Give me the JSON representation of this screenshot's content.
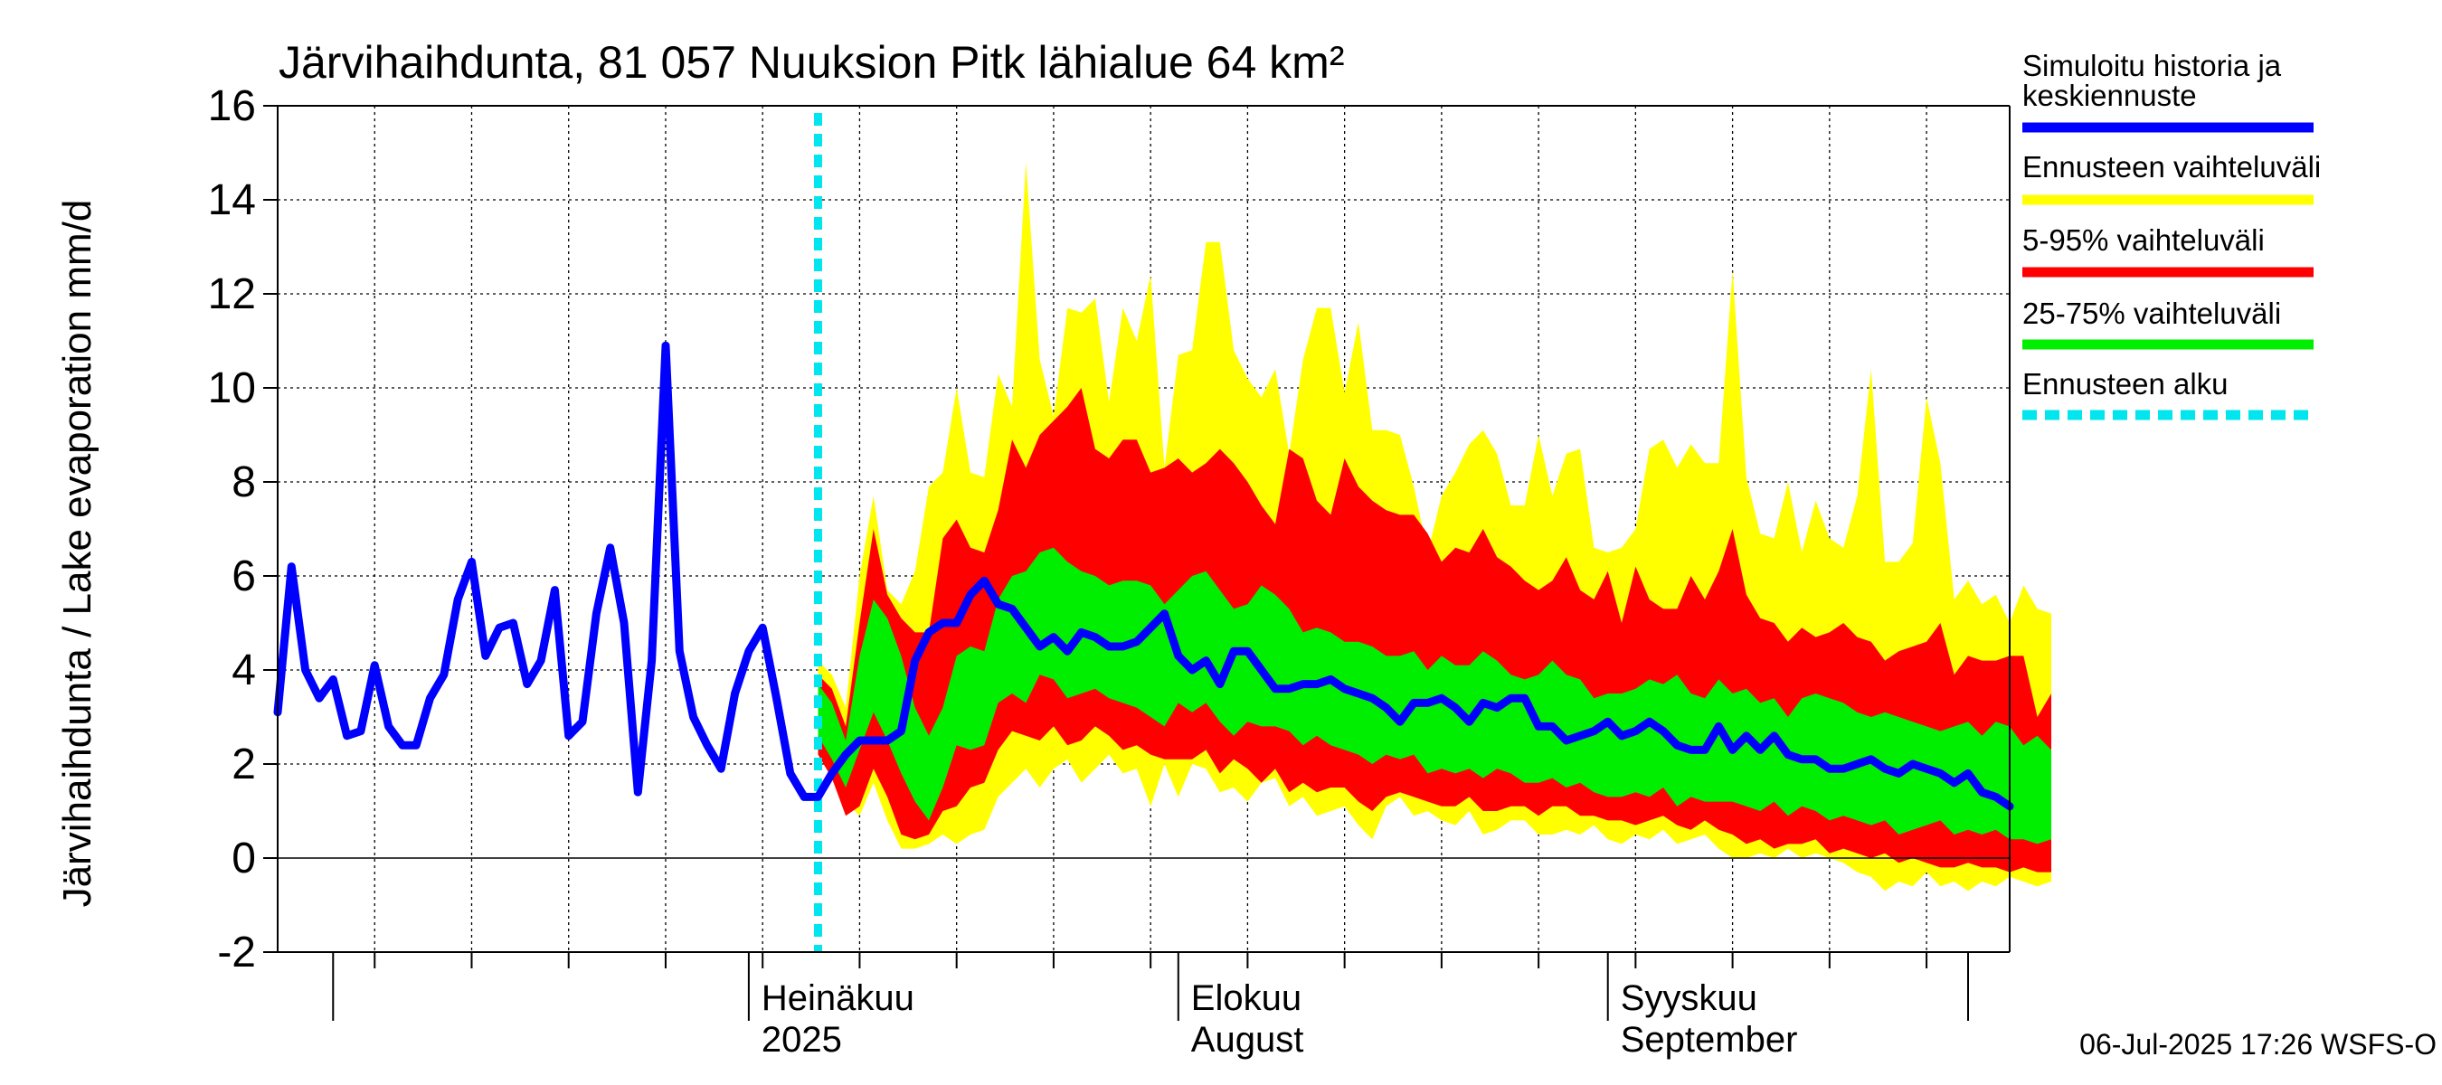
{
  "chart_data": {
    "type": "area",
    "title": "Järvihaihdunta, 81 057 Nuuksion Pitk lähialue 64 km²",
    "ylabel": "Järvihaihdunta / Lake evaporation   mm/d",
    "xlabel": "",
    "ylim": [
      -2,
      16
    ],
    "yticks": [
      -2,
      0,
      2,
      4,
      6,
      8,
      10,
      12,
      14,
      16
    ],
    "x_range": [
      "2025-05-28",
      "2025-09-30"
    ],
    "grid": true,
    "legend_position": "right",
    "month_labels": [
      {
        "date": "2025-07-01",
        "line1": "Heinäkuu",
        "line2": "2025"
      },
      {
        "date": "2025-08-01",
        "line1": "Elokuu",
        "line2": "August"
      },
      {
        "date": "2025-09-01",
        "line1": "Syyskuu",
        "line2": "September"
      }
    ],
    "forecast_start": "2025-07-06",
    "history_start": "2025-05-28",
    "forecast_dates_start": "2025-07-06",
    "series": [
      {
        "name": "Simuloitu historia ja keskiennuste",
        "color": "#0000ff",
        "values": [
          3.1,
          6.2,
          4.0,
          3.4,
          3.8,
          2.6,
          2.7,
          4.1,
          2.8,
          2.4,
          2.4,
          3.4,
          3.9,
          5.5,
          6.3,
          4.3,
          4.9,
          5.0,
          3.7,
          4.2,
          5.7,
          2.6,
          2.9,
          5.2,
          6.6,
          5.0,
          1.4,
          4.2,
          10.9,
          4.4,
          3.0,
          2.4,
          1.9,
          3.5,
          4.4,
          4.9,
          3.4,
          1.8,
          1.3,
          1.3,
          1.8,
          2.2,
          2.5,
          2.5,
          2.5,
          2.7,
          4.2,
          4.8,
          5.0,
          5.0,
          5.6,
          5.9,
          5.4,
          5.3,
          4.9,
          4.5,
          4.7,
          4.4,
          4.8,
          4.7,
          4.5,
          4.5,
          4.6,
          4.9,
          5.2,
          4.3,
          4.0,
          4.2,
          3.7,
          4.4,
          4.4,
          4.0,
          3.6,
          3.6,
          3.7,
          3.7,
          3.8,
          3.6,
          3.5,
          3.4,
          3.2,
          2.9,
          3.3,
          3.3,
          3.4,
          3.2,
          2.9,
          3.3,
          3.2,
          3.4,
          3.4,
          2.8,
          2.8,
          2.5,
          2.6,
          2.7,
          2.9,
          2.6,
          2.7,
          2.9,
          2.7,
          2.4,
          2.3,
          2.3,
          2.8,
          2.3,
          2.6,
          2.3,
          2.6,
          2.2,
          2.1,
          2.1,
          1.9,
          1.9,
          2.0,
          2.1,
          1.9,
          1.8,
          2.0,
          1.9,
          1.8,
          1.6,
          1.8,
          1.4,
          1.3,
          1.1
        ]
      },
      {
        "name": "Ennusteen vaihteluväli",
        "color": "#ffff00",
        "upper": [
          4.2,
          3.9,
          3.2,
          6.0,
          7.7,
          5.7,
          5.4,
          6.1,
          7.9,
          8.2,
          10.0,
          8.2,
          8.1,
          10.3,
          9.6,
          14.8,
          10.6,
          9.4,
          11.7,
          11.6,
          11.9,
          9.7,
          11.7,
          11.0,
          12.4,
          8.3,
          10.7,
          10.8,
          13.1,
          13.1,
          10.8,
          10.2,
          9.8,
          10.4,
          8.6,
          10.6,
          11.7,
          11.7,
          9.9,
          11.4,
          9.1,
          9.1,
          9.0,
          7.9,
          6.5,
          7.7,
          8.2,
          8.8,
          9.1,
          8.6,
          7.5,
          7.5,
          9.0,
          7.7,
          8.6,
          8.7,
          6.6,
          6.5,
          6.6,
          7.0,
          8.7,
          8.9,
          8.3,
          8.8,
          8.4,
          8.4,
          12.5,
          8.1,
          6.9,
          6.8,
          8.0,
          6.5,
          7.6,
          6.8,
          6.6,
          7.7,
          10.4,
          6.3,
          6.3,
          6.7,
          9.8,
          8.4,
          5.5,
          5.9,
          5.4,
          5.6,
          5.0,
          5.8,
          5.3,
          5.2
        ],
        "lower": [
          2.6,
          2.1,
          1.2,
          0.9,
          1.6,
          0.8,
          0.2,
          0.2,
          0.3,
          0.5,
          0.3,
          0.5,
          0.6,
          1.3,
          1.6,
          1.9,
          1.5,
          1.9,
          2.1,
          1.6,
          1.9,
          2.2,
          1.8,
          1.9,
          1.1,
          2.0,
          1.3,
          2.0,
          1.9,
          1.4,
          1.5,
          1.2,
          1.6,
          1.7,
          1.1,
          1.3,
          0.9,
          1.0,
          1.1,
          0.7,
          0.4,
          1.1,
          1.3,
          0.9,
          1.0,
          0.8,
          0.7,
          1.0,
          0.5,
          0.6,
          0.8,
          0.8,
          0.5,
          0.5,
          0.6,
          0.5,
          0.7,
          0.4,
          0.3,
          0.5,
          0.4,
          0.6,
          0.3,
          0.4,
          0.5,
          0.2,
          0.0,
          0.0,
          0.1,
          0.0,
          0.2,
          0.0,
          0.1,
          0.0,
          -0.1,
          -0.3,
          -0.4,
          -0.7,
          -0.5,
          -0.6,
          -0.3,
          -0.6,
          -0.5,
          -0.7,
          -0.5,
          -0.6,
          -0.4,
          -0.5,
          -0.6,
          -0.5
        ]
      },
      {
        "name": "5-95% vaihteluväli",
        "color": "#ff0000",
        "upper": [
          3.9,
          3.6,
          2.8,
          5.0,
          7.0,
          5.6,
          5.1,
          4.8,
          4.8,
          6.8,
          7.2,
          6.6,
          6.5,
          7.4,
          8.9,
          8.3,
          9.0,
          9.3,
          9.6,
          10.0,
          8.7,
          8.5,
          8.9,
          8.9,
          8.2,
          8.3,
          8.5,
          8.2,
          8.4,
          8.7,
          8.4,
          8.0,
          7.5,
          7.1,
          8.7,
          8.5,
          7.6,
          7.3,
          8.5,
          7.9,
          7.6,
          7.4,
          7.3,
          7.3,
          6.9,
          6.3,
          6.6,
          6.5,
          7.0,
          6.4,
          6.2,
          5.9,
          5.7,
          5.9,
          6.4,
          5.7,
          5.5,
          6.1,
          5.0,
          6.2,
          5.5,
          5.3,
          5.3,
          6.0,
          5.5,
          6.1,
          7.0,
          5.6,
          5.1,
          5.0,
          4.6,
          4.9,
          4.7,
          4.8,
          5.0,
          4.7,
          4.6,
          4.2,
          4.4,
          4.5,
          4.6,
          5.0,
          3.9,
          4.3,
          4.2,
          4.2,
          4.3,
          4.3,
          3.0,
          3.5
        ],
        "lower": [
          2.2,
          1.7,
          0.9,
          1.1,
          1.9,
          1.3,
          0.5,
          0.4,
          0.5,
          1.0,
          1.1,
          1.5,
          1.6,
          2.3,
          2.7,
          2.6,
          2.5,
          2.8,
          2.4,
          2.5,
          2.8,
          2.6,
          2.3,
          2.4,
          2.2,
          2.1,
          2.1,
          2.1,
          2.3,
          1.8,
          2.1,
          1.9,
          1.6,
          1.9,
          1.4,
          1.6,
          1.4,
          1.5,
          1.5,
          1.2,
          1.0,
          1.3,
          1.4,
          1.3,
          1.2,
          1.1,
          1.1,
          1.3,
          1.0,
          1.0,
          1.1,
          1.1,
          0.9,
          1.1,
          1.1,
          0.9,
          0.9,
          0.8,
          0.8,
          0.7,
          0.8,
          0.9,
          0.7,
          0.6,
          0.8,
          0.6,
          0.5,
          0.3,
          0.4,
          0.2,
          0.3,
          0.3,
          0.4,
          0.1,
          0.2,
          0.1,
          0.0,
          0.1,
          -0.1,
          0.0,
          -0.1,
          -0.2,
          -0.2,
          -0.1,
          -0.2,
          -0.2,
          -0.3,
          -0.2,
          -0.3,
          -0.3
        ]
      },
      {
        "name": "25-75% vaihteluväli",
        "color": "#00ee00",
        "upper": [
          3.7,
          3.3,
          2.5,
          4.3,
          5.5,
          5.1,
          4.3,
          3.2,
          2.6,
          3.2,
          4.3,
          4.5,
          4.4,
          5.5,
          6.0,
          6.1,
          6.5,
          6.6,
          6.3,
          6.1,
          6.0,
          5.8,
          5.9,
          5.9,
          5.8,
          5.4,
          5.7,
          6.0,
          6.1,
          5.7,
          5.3,
          5.4,
          5.8,
          5.6,
          5.3,
          4.8,
          4.9,
          4.8,
          4.6,
          4.6,
          4.5,
          4.3,
          4.3,
          4.4,
          4.0,
          4.3,
          4.1,
          4.1,
          4.4,
          4.2,
          3.9,
          3.8,
          3.9,
          4.2,
          3.9,
          3.8,
          3.4,
          3.5,
          3.5,
          3.6,
          3.8,
          3.7,
          3.9,
          3.5,
          3.4,
          3.8,
          3.5,
          3.6,
          3.3,
          3.4,
          3.0,
          3.4,
          3.5,
          3.4,
          3.3,
          3.1,
          3.0,
          3.1,
          3.0,
          2.9,
          2.8,
          2.7,
          2.8,
          2.9,
          2.6,
          2.9,
          2.8,
          2.4,
          2.6,
          2.3
        ],
        "lower": [
          2.6,
          2.1,
          1.5,
          2.3,
          3.1,
          2.5,
          1.8,
          1.2,
          0.8,
          1.5,
          2.4,
          2.3,
          2.4,
          3.3,
          3.5,
          3.3,
          3.9,
          3.8,
          3.4,
          3.5,
          3.6,
          3.4,
          3.3,
          3.2,
          3.0,
          2.8,
          3.3,
          3.1,
          3.3,
          2.9,
          2.6,
          2.9,
          2.8,
          2.8,
          2.7,
          2.4,
          2.6,
          2.4,
          2.3,
          2.2,
          2.0,
          2.2,
          2.1,
          2.2,
          1.8,
          1.9,
          1.8,
          1.9,
          1.7,
          1.9,
          1.8,
          1.6,
          1.6,
          1.7,
          1.5,
          1.6,
          1.4,
          1.3,
          1.3,
          1.4,
          1.3,
          1.5,
          1.1,
          1.3,
          1.2,
          1.2,
          1.2,
          1.1,
          1.0,
          1.2,
          0.9,
          1.1,
          1.0,
          0.8,
          0.9,
          0.8,
          0.7,
          0.8,
          0.5,
          0.6,
          0.7,
          0.8,
          0.5,
          0.6,
          0.5,
          0.6,
          0.4,
          0.4,
          0.3,
          0.4
        ]
      },
      {
        "name": "Ennusteen alku",
        "color": "#00e5ee",
        "style": "dashed"
      }
    ]
  },
  "legend_items": [
    {
      "label_lines": [
        "Simuloitu historia ja",
        "keskiennuste"
      ],
      "color": "#0000ff",
      "style": "solid"
    },
    {
      "label_lines": [
        "Ennusteen vaihteluväli"
      ],
      "color": "#ffff00",
      "style": "solid"
    },
    {
      "label_lines": [
        "5-95% vaihteluväli"
      ],
      "color": "#ff0000",
      "style": "solid"
    },
    {
      "label_lines": [
        "25-75% vaihteluväli"
      ],
      "color": "#00ee00",
      "style": "solid"
    },
    {
      "label_lines": [
        "Ennusteen alku"
      ],
      "color": "#00e5ee",
      "style": "dashed"
    }
  ],
  "footer": {
    "timestamp": "06-Jul-2025 17:26 WSFS-O"
  }
}
